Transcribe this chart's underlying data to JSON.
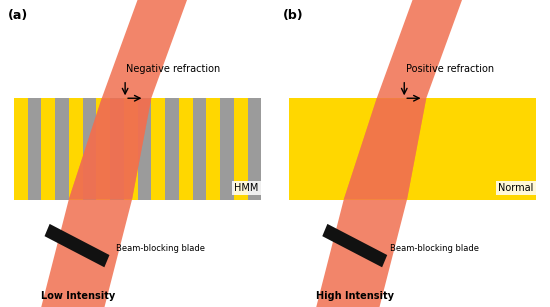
{
  "fig_width": 5.5,
  "fig_height": 3.07,
  "dpi": 100,
  "background_color": "#ffffff",
  "beam_color_outer": "#F07050",
  "beam_color_inner": "#D05020",
  "beam_alpha": 0.85,
  "hmm_yellow": "#FFD700",
  "hmm_gray": "#9B9B9B",
  "normal_yellow": "#FFD700",
  "blade_color": "#111111",
  "label_a": "(a)",
  "label_b": "(b)",
  "text_neg": "Negative refraction",
  "text_pos": "Positive refraction",
  "text_hmm": "HMM",
  "text_normal": "Normal",
  "text_blade_a": "Beam-blocking blade",
  "text_blade_b": "Beam-blocking blade",
  "text_low": "Low Intensity",
  "text_high": "High Intensity"
}
